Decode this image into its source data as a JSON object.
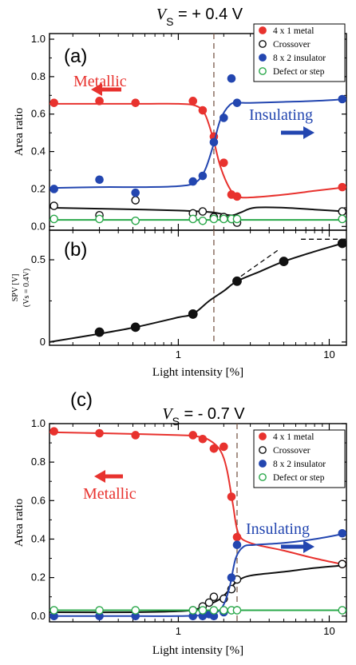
{
  "colors": {
    "metal": "#e8322e",
    "crossover": "#111111",
    "insulator": "#2346b0",
    "defect": "#2aa84a",
    "guide": "#7a5a4a"
  },
  "chart_data": [
    {
      "id": "a",
      "type": "scatter",
      "panel_label": "(a)",
      "title_var": "V",
      "title_sub": "S",
      "title_rest": " = + 0.4 V",
      "ylabel": "Area ratio",
      "xscale": "log",
      "xlim": [
        0.14,
        13
      ],
      "ylim": [
        -0.02,
        1.03
      ],
      "yticks": [
        "0.0",
        "0.2",
        "0.4",
        "0.6",
        "0.8",
        "1.0"
      ],
      "vline_x": 1.72,
      "legend": {
        "placement": "top-right",
        "entries": [
          {
            "label": "4 x 1 metal",
            "key": "metal",
            "filled": true
          },
          {
            "label": "Crossover",
            "key": "crossover",
            "filled": false
          },
          {
            "label": "8 x 2 insulator",
            "key": "insulator",
            "filled": true
          },
          {
            "label": "Defect or step",
            "key": "defect",
            "filled": false
          }
        ]
      },
      "annotations": {
        "left": "Metallic",
        "right": "Insulating"
      },
      "series": [
        {
          "name": "4 x 1 metal",
          "key": "metal",
          "filled": true,
          "x": [
            0.15,
            0.3,
            0.52,
            1.25,
            1.45,
            1.72,
            2.0,
            2.25,
            2.45,
            12.2
          ],
          "y": [
            0.66,
            0.67,
            0.66,
            0.67,
            0.62,
            0.48,
            0.34,
            0.17,
            0.16,
            0.21
          ],
          "curve_x": [
            0.14,
            0.3,
            0.6,
            1.0,
            1.3,
            1.5,
            1.7,
            1.9,
            2.2,
            2.5,
            3.0,
            5.0,
            8.0,
            13
          ],
          "curve_y": [
            0.655,
            0.655,
            0.655,
            0.655,
            0.645,
            0.6,
            0.47,
            0.32,
            0.2,
            0.16,
            0.155,
            0.17,
            0.19,
            0.21
          ]
        },
        {
          "name": "Crossover",
          "key": "crossover",
          "filled": false,
          "x": [
            0.15,
            0.3,
            0.52,
            1.25,
            1.45,
            1.72,
            2.0,
            2.25,
            2.45,
            12.2
          ],
          "y": [
            0.11,
            0.06,
            0.14,
            0.07,
            0.08,
            0.05,
            0.05,
            0.04,
            0.02,
            0.08
          ],
          "curve_x": [
            0.14,
            0.3,
            0.6,
            1.0,
            1.4,
            1.7,
            2.0,
            2.3,
            2.6,
            3.2,
            5.0,
            8.0,
            13
          ],
          "curve_y": [
            0.1,
            0.095,
            0.09,
            0.085,
            0.08,
            0.075,
            0.065,
            0.06,
            0.075,
            0.1,
            0.1,
            0.09,
            0.08
          ]
        },
        {
          "name": "8 x 2 insulator",
          "key": "insulator",
          "filled": true,
          "x": [
            0.15,
            0.3,
            0.52,
            1.25,
            1.45,
            1.72,
            2.0,
            2.25,
            2.45,
            12.2
          ],
          "y": [
            0.2,
            0.25,
            0.18,
            0.24,
            0.27,
            0.45,
            0.58,
            0.79,
            0.66,
            0.68
          ],
          "curve_x": [
            0.14,
            0.3,
            0.6,
            1.0,
            1.3,
            1.5,
            1.7,
            1.9,
            2.2,
            2.5,
            3.0,
            5.0,
            8.0,
            13
          ],
          "curve_y": [
            0.205,
            0.21,
            0.21,
            0.215,
            0.235,
            0.3,
            0.43,
            0.57,
            0.65,
            0.66,
            0.66,
            0.665,
            0.67,
            0.68
          ]
        },
        {
          "name": "Defect or step",
          "key": "defect",
          "filled": false,
          "x": [
            0.15,
            0.3,
            0.52,
            1.25,
            1.45,
            1.72,
            2.0,
            2.25,
            2.45,
            12.2
          ],
          "y": [
            0.04,
            0.04,
            0.03,
            0.04,
            0.03,
            0.04,
            0.04,
            0.04,
            0.04,
            0.04
          ],
          "curve_x": [
            0.14,
            13
          ],
          "curve_y": [
            0.035,
            0.035
          ]
        }
      ]
    },
    {
      "id": "b",
      "type": "line",
      "panel_label": "(b)",
      "ylabel_top": "SPV [V]",
      "ylabel_bottom": "(Vs = 0.4V)",
      "xlabel": "Light intensity [%]",
      "xscale": "log",
      "xlim": [
        0.14,
        13
      ],
      "ylim": [
        -0.02,
        0.68
      ],
      "yticks": [
        "0",
        "0.5"
      ],
      "xticks": [
        "1",
        "10"
      ],
      "vline_x": 1.72,
      "series": [
        {
          "name": "SPV",
          "key": "crossover",
          "filled": true,
          "x": [
            0.3,
            0.52,
            1.25,
            2.45,
            5.0,
            12.2
          ],
          "y": [
            0.06,
            0.09,
            0.17,
            0.37,
            0.49,
            0.6
          ],
          "curve_x": [
            0.14,
            0.3,
            0.52,
            1.0,
            1.25,
            1.6,
            2.0,
            2.45,
            3.5,
            5.0,
            8.0,
            12.2,
            13
          ],
          "curve_y": [
            0.0,
            0.05,
            0.09,
            0.15,
            0.17,
            0.25,
            0.31,
            0.37,
            0.43,
            0.49,
            0.55,
            0.6,
            0.61
          ]
        }
      ],
      "dashed_guides": [
        {
          "x": [
            2.6,
            4.6
          ],
          "y": [
            0.4,
            0.56
          ]
        },
        {
          "x": [
            6.5,
            13
          ],
          "y": [
            0.625,
            0.625
          ]
        }
      ]
    },
    {
      "id": "c",
      "type": "scatter",
      "panel_label": "(c)",
      "title_var": "V",
      "title_sub": "S",
      "title_rest": " = - 0.7 V",
      "ylabel": "Area ratio",
      "xlabel": "Light intensity [%]",
      "xscale": "log",
      "xlim": [
        0.14,
        13
      ],
      "ylim": [
        -0.03,
        1.0
      ],
      "yticks": [
        "0.0",
        "0.2",
        "0.4",
        "0.6",
        "0.8",
        "1.0"
      ],
      "xticks": [
        "1",
        "10"
      ],
      "vline_x": 2.45,
      "legend": {
        "placement": "top-right",
        "entries": [
          {
            "label": "4 x 1 metal",
            "key": "metal",
            "filled": true
          },
          {
            "label": "Crossover",
            "key": "crossover",
            "filled": false
          },
          {
            "label": "8 x 2 insulator",
            "key": "insulator",
            "filled": true
          },
          {
            "label": "Defect or step",
            "key": "defect",
            "filled": false
          }
        ]
      },
      "annotations": {
        "left": "Metallic",
        "right": "Insulating"
      },
      "series": [
        {
          "name": "4 x 1 metal",
          "key": "metal",
          "filled": true,
          "x": [
            0.15,
            0.3,
            0.52,
            1.25,
            1.45,
            1.72,
            2.0,
            2.25,
            2.45,
            12.2
          ],
          "y": [
            0.96,
            0.95,
            0.94,
            0.94,
            0.92,
            0.87,
            0.88,
            0.62,
            0.41,
            0.27
          ],
          "curve_x": [
            0.14,
            0.3,
            0.6,
            1.0,
            1.3,
            1.6,
            1.9,
            2.1,
            2.3,
            2.5,
            3.0,
            5.0,
            8.0,
            13
          ],
          "curve_y": [
            0.955,
            0.95,
            0.945,
            0.94,
            0.935,
            0.915,
            0.86,
            0.76,
            0.58,
            0.43,
            0.38,
            0.34,
            0.3,
            0.265
          ]
        },
        {
          "name": "Crossover",
          "key": "crossover",
          "filled": false,
          "x": [
            1.25,
            1.45,
            1.6,
            1.72,
            2.0,
            2.25,
            2.45,
            12.2
          ],
          "y": [
            0.03,
            0.05,
            0.07,
            0.1,
            0.09,
            0.14,
            0.19,
            0.27
          ],
          "curve_x": [
            0.14,
            0.5,
            1.0,
            1.3,
            1.6,
            1.9,
            2.2,
            2.45,
            3.0,
            5.0,
            8.0,
            13
          ],
          "curve_y": [
            0.02,
            0.02,
            0.025,
            0.035,
            0.06,
            0.09,
            0.14,
            0.18,
            0.21,
            0.23,
            0.25,
            0.265
          ]
        },
        {
          "name": "8 x 2 insulator",
          "key": "insulator",
          "filled": true,
          "x": [
            0.15,
            0.3,
            0.52,
            1.25,
            1.45,
            1.6,
            1.72,
            2.0,
            2.25,
            2.45,
            12.2
          ],
          "y": [
            0.0,
            0.0,
            0.0,
            0.0,
            0.0,
            0.01,
            0.0,
            0.02,
            0.2,
            0.37,
            0.43
          ],
          "curve_x": [
            0.14,
            0.5,
            1.0,
            1.5,
            1.8,
            2.0,
            2.2,
            2.4,
            2.7,
            3.2,
            5.0,
            8.0,
            13
          ],
          "curve_y": [
            0.0,
            0.0,
            0.0,
            0.005,
            0.02,
            0.06,
            0.16,
            0.3,
            0.36,
            0.37,
            0.38,
            0.4,
            0.43
          ]
        },
        {
          "name": "Defect or step",
          "key": "defect",
          "filled": false,
          "x": [
            0.15,
            0.3,
            0.52,
            1.25,
            1.45,
            1.72,
            2.0,
            2.25,
            2.45,
            12.2
          ],
          "y": [
            0.03,
            0.03,
            0.03,
            0.03,
            0.03,
            0.03,
            0.03,
            0.03,
            0.03,
            0.03
          ],
          "curve_x": [
            0.14,
            13
          ],
          "curve_y": [
            0.03,
            0.03
          ]
        }
      ]
    }
  ]
}
